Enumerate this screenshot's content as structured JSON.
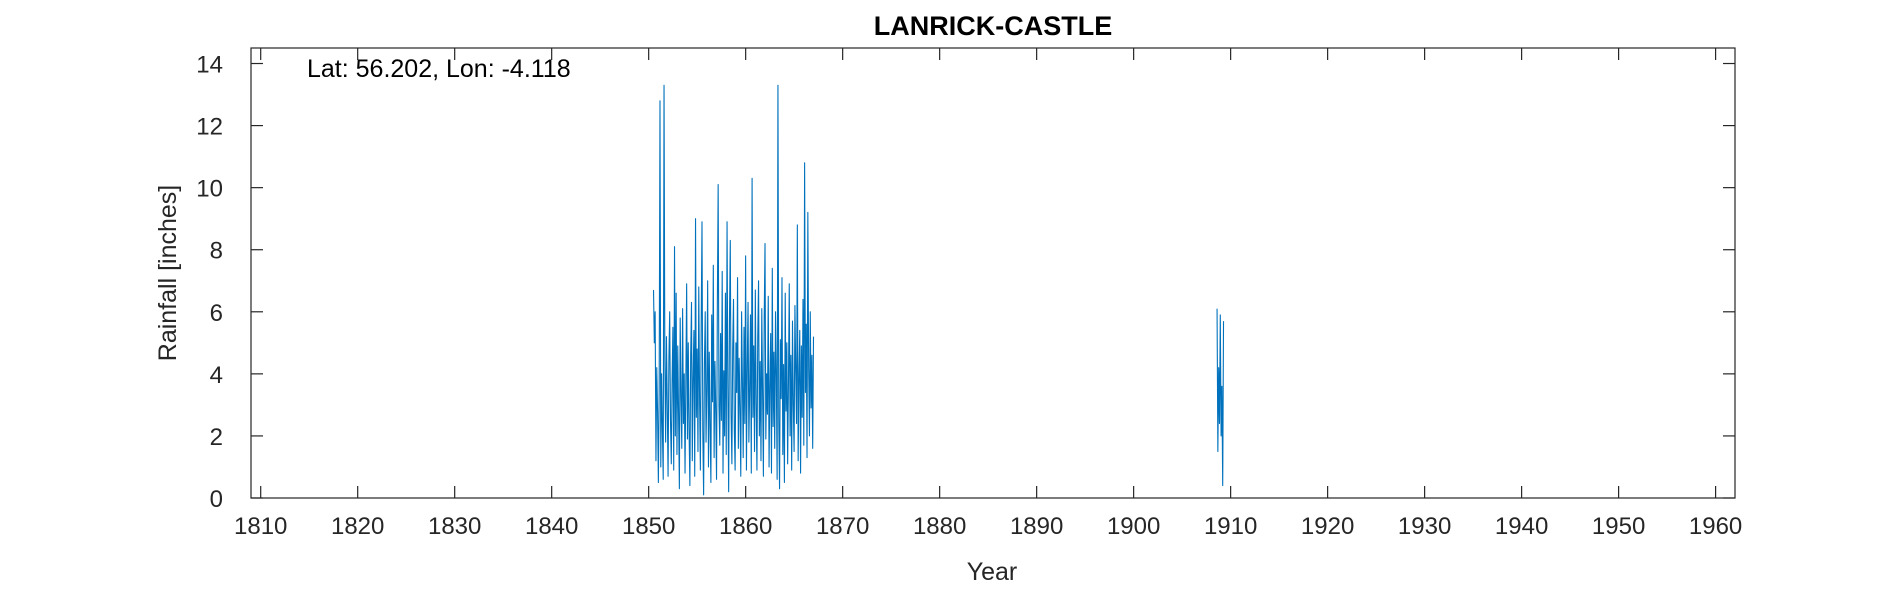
{
  "chart_data": {
    "type": "line",
    "title": "LANRICK-CASTLE",
    "annotation": "Lat: 56.202, Lon: -4.118",
    "xlabel": "Year",
    "ylabel": "Rainfall [inches]",
    "xlim": [
      1809,
      1962
    ],
    "ylim": [
      0,
      14.5
    ],
    "xticks": [
      1810,
      1820,
      1830,
      1840,
      1850,
      1860,
      1870,
      1880,
      1890,
      1900,
      1910,
      1920,
      1930,
      1940,
      1950,
      1960
    ],
    "yticks": [
      0,
      2,
      4,
      6,
      8,
      10,
      12,
      14
    ],
    "grid": false,
    "line_color": "#0072BD",
    "series": [
      {
        "name": "",
        "segments": [
          {
            "x_start": 1850.5,
            "x_step": 0.0833,
            "values": [
              6.7,
              5.0,
              6.0,
              1.2,
              4.2,
              2.8,
              0.5,
              3.5,
              12.8,
              1.0,
              4.0,
              2.2,
              0.6,
              13.3,
              4.5,
              1.8,
              5.2,
              3.0,
              0.7,
              4.4,
              6.0,
              2.5,
              1.1,
              3.8,
              5.5,
              0.9,
              8.1,
              2.0,
              6.6,
              1.4,
              4.9,
              2.7,
              0.3,
              5.8,
              3.3,
              1.6,
              6.1,
              2.4,
              4.0,
              0.8,
              3.7,
              6.9,
              1.9,
              5.0,
              2.2,
              0.4,
              4.6,
              6.3,
              1.2,
              3.9,
              5.4,
              0.7,
              9.0,
              2.6,
              4.8,
              1.5,
              6.8,
              3.2,
              0.9,
              5.6,
              8.9,
              2.1,
              0.1,
              4.3,
              6.0,
              1.8,
              3.5,
              7.0,
              1.0,
              4.7,
              2.3,
              0.5,
              5.9,
              3.1,
              7.5,
              1.3,
              4.4,
              2.8,
              0.6,
              6.2,
              10.1,
              3.0,
              1.7,
              5.3,
              2.5,
              7.3,
              0.8,
              4.1,
              2.0,
              6.6,
              1.4,
              8.9,
              3.6,
              0.2,
              5.7,
              8.3,
              2.7,
              1.1,
              4.8,
              6.4,
              2.2,
              0.9,
              5.0,
              3.4,
              7.1,
              1.6,
              4.5,
              2.9,
              0.7,
              6.0,
              3.8,
              1.3,
              5.5,
              2.4,
              7.8,
              0.9,
              4.2,
              6.3,
              1.8,
              3.5,
              5.9,
              0.8,
              10.3,
              2.6,
              4.9,
              1.5,
              6.7,
              3.1,
              0.9,
              5.2,
              7.0,
              2.0,
              4.4,
              1.2,
              6.1,
              3.3,
              0.7,
              5.8,
              8.2,
              1.9,
              4.0,
              2.7,
              6.5,
              1.0,
              3.6,
              5.3,
              0.8,
              7.4,
              2.3,
              4.7,
              1.6,
              6.0,
              3.9,
              0.6,
              13.3,
              2.5,
              0.3,
              5.1,
              3.2,
              7.1,
              1.4,
              4.3,
              0.5,
              6.6,
              2.8,
              5.0,
              1.1,
              3.7,
              6.9,
              2.0,
              4.6,
              0.9,
              5.7,
              3.0,
              1.5,
              6.2,
              4.1,
              2.4,
              8.8,
              1.2,
              3.8,
              5.4,
              0.8,
              4.9,
              2.6,
              6.4,
              1.7,
              10.8,
              3.4,
              5.6,
              1.3,
              9.2,
              4.2,
              2.0,
              6.0,
              2.9,
              4.6,
              1.6,
              5.2
            ]
          },
          {
            "x_start": 1908.6,
            "x_step": 0.0833,
            "values": [
              6.1,
              1.5,
              4.2,
              2.4,
              5.9,
              2.0,
              3.6,
              0.4,
              5.7
            ]
          }
        ]
      }
    ]
  }
}
